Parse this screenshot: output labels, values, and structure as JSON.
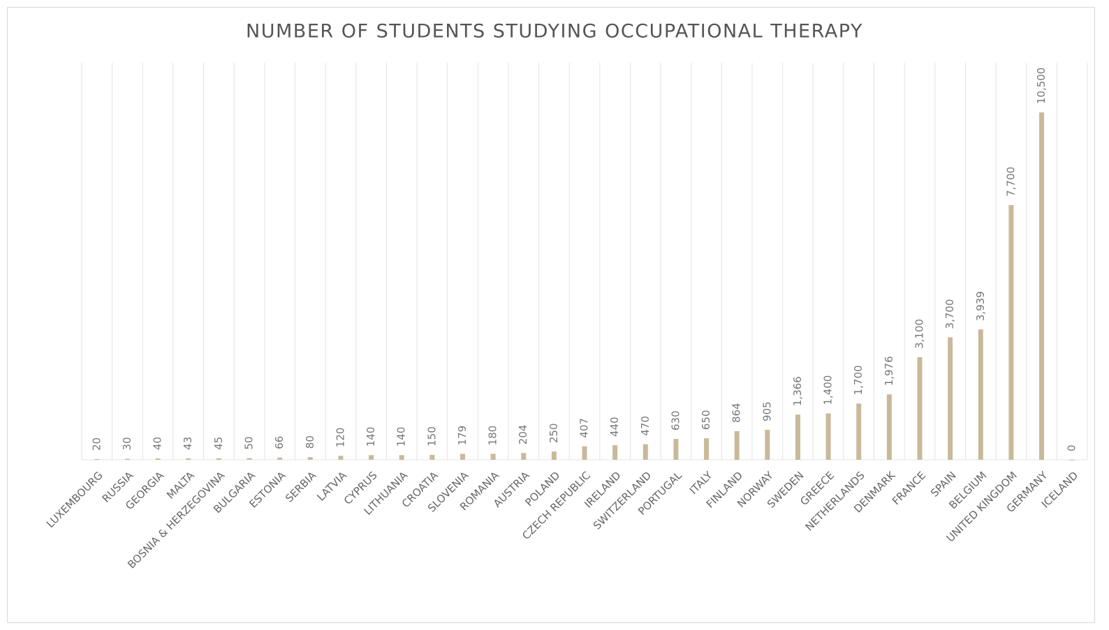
{
  "chart_data": {
    "type": "bar",
    "title": "NUMBER OF STUDENTS STUDYING OCCUPATIONAL THERAPY",
    "categories": [
      "LUXEMBOURG",
      "RUSSIA",
      "GEORGIA",
      "MALTA",
      "BOSNIA & HERZEGOVINA",
      "BULGARIA",
      "ESTONIA",
      "SERBIA",
      "LATVIA",
      "CYPRUS",
      "LITHUANIA",
      "CROATIA",
      "SLOVENIA",
      "ROMANIA",
      "AUSTRIA",
      "POLAND",
      "CZECH REPUBLIC",
      "IRELAND",
      "SWITZERLAND",
      "PORTUGAL",
      "ITALY",
      "FINLAND",
      "NORWAY",
      "SWEDEN",
      "GREECE",
      "NETHERLANDS",
      "DENMARK",
      "FRANCE",
      "SPAIN",
      "BELGIUM",
      "UNITED KINGDOM",
      "GERMANY",
      "ICELAND"
    ],
    "values": [
      20,
      30,
      40,
      43,
      45,
      50,
      66,
      80,
      120,
      140,
      140,
      150,
      179,
      180,
      204,
      250,
      407,
      440,
      470,
      630,
      650,
      864,
      905,
      1366,
      1400,
      1700,
      1976,
      3100,
      3700,
      3939,
      7700,
      10500,
      0
    ],
    "value_labels": [
      "20",
      "30",
      "40",
      "43",
      "45",
      "50",
      "66",
      "80",
      "120",
      "140",
      "140",
      "150",
      "179",
      "180",
      "204",
      "250",
      "407",
      "440",
      "470",
      "630",
      "650",
      "864",
      "905",
      "1,366",
      "1,400",
      "1,700",
      "1,976",
      "3,100",
      "3,700",
      "3,939",
      "7,700",
      "10,500",
      "0"
    ],
    "color": "#c9b99a",
    "ylim": [
      0,
      12000
    ]
  }
}
